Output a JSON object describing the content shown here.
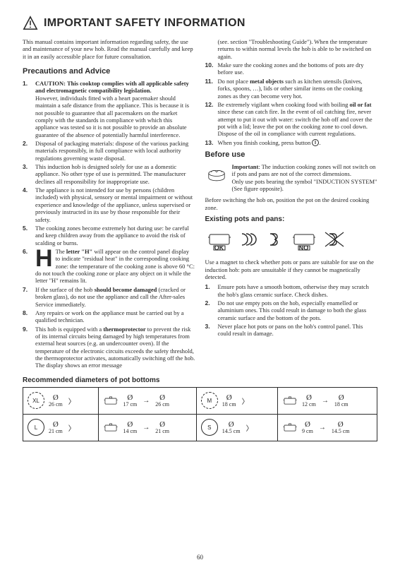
{
  "heading": "IMPORTANT SAFETY INFORMATION",
  "intro": "This manual contains important information regarding safety, the use and maintenance of your new hob. Read the manual carefully and keep it in an easily accessible place for future consultation.",
  "precautions_heading": "Precautions and Advice",
  "items_left": [
    "CAUTION: This cooktop complies with all applicable safety and electromagnetic compatibility legislation.\nHowever, individuals fitted with a heart pacemaker should maintain a safe distance from the appliance. This is because it is not possible to guarantee that all pacemakers on the market comply with the standards in compliance with which this appliance was tested so it is not possible to provide an absolute guarantee of the absence of potentially harmful interference.",
    "Disposal of packaging materials: dispose of the various packing materials responsibly, in full compliance with local authority regulations governing waste disposal.",
    "This induction hob is designed solely for use as a domestic appliance. No other type of use is permitted. The manufacturer declines all responsibility for inappropriate use.",
    "The appliance is not intended for use by persons (children included) with physical, sensory or mental impairment or without experience and knowledge of the appliance, unless supervised or previously instructed in its use by those responsible for their safety.",
    "The cooking zones become extremely hot during use: be careful and keep children away from the appliance to avoid the risk of scalding or burns.",
    "The letter \"H\" will appear on the control panel display to indicate \"residual heat\" in the corresponding cooking zone: the temperature of the cooking zone is above 60 °C: do not touch the cooking zone or place any object on it while the letter \"H\" remains lit.",
    "If the surface of the hob should become damaged (cracked or broken glass), do not use the appliance and call the After-sales Service immediately.",
    "Any repairs or work on the appliance must be carried out by a qualified technician.",
    "This hob is equipped with a thermoprotector to prevent the risk of its internal circuits being damaged by high temperatures from external heat sources (e.g. an undercounter oven). If the temperature of the electronic circuits exceeds the safety threshold, the thermoprotector activates, automatically switching off the hob. The display shows an error message"
  ],
  "items_right_pre": "(see. section \"Troubleshooting Guide\"). When the temperature returns to within normal levels the hob is able to be switched on again.",
  "items_right": [
    "Make sure the cooking zones and the bottoms of pots are dry before use.",
    "Do not place metal objects such as kitchen utensils (knives, forks, spoons, …), lids or other similar items on the cooking zones as they can become very hot.",
    "Be extremely vigilant when cooking food with boiling oil or fat since these can catch fire. In the event of oil catching fire, never attempt to put it out with water: switch the hob off and cover the pot with a lid; leave the pot on the cooking zone to cool down. Dispose of the oil in compliance with current regulations.",
    "When you finish cooking, press button "
  ],
  "before_heading": "Before use",
  "before_important": "Important: The induction cooking zones will not switch on if pots and pans are not of the correct dimensions.\nOnly use pots bearing the symbol \"INDUCTION SYSTEM\" (See figure opposite).",
  "before_text": "Before switching the hob on, position the pot on the desired cooking zone.",
  "pots_heading": "Existing pots and pans:",
  "pots_label_ok": "OK",
  "pots_label_no": "NO",
  "pots_text": "Use a magnet to check whether pots or pans are suitable for use on the induction hob: pots are unsuitable if they cannot be magnetically detected.",
  "pots_list": [
    "Ensure pots have a smooth bottom, otherwise they may scratch the hob's glass ceramic surface. Check dishes.",
    "Do not use empty pots on the hob, especially enamelled or aluminium ones. This could result in damage to both the glass ceramic surface and the bottom of the pots.",
    "Never place hot pots or pans on the hob's control panel. This could result in damage."
  ],
  "table_title": "Recommended diameters of pot bottoms",
  "table": {
    "rows": [
      [
        {
          "badge": "XL",
          "badge_style": "dashed",
          "zone_cm": "26 cm",
          "min": "17 cm",
          "max": "26 cm"
        },
        {
          "badge": "M",
          "badge_style": "dashed",
          "zone_cm": "18 cm",
          "min": "12 cm",
          "max": "18 cm"
        }
      ],
      [
        {
          "badge": "L",
          "badge_style": "solid",
          "zone_cm": "21 cm",
          "min": "14 cm",
          "max": "21 cm"
        },
        {
          "badge": "S",
          "badge_style": "solid",
          "zone_cm": "14.5 cm",
          "min": "9 cm",
          "max": "14.5 cm"
        }
      ]
    ]
  },
  "page_number": "60",
  "colors": {
    "text": "#2a2a2a",
    "bg": "#ffffff",
    "border": "#2a2a2a"
  }
}
